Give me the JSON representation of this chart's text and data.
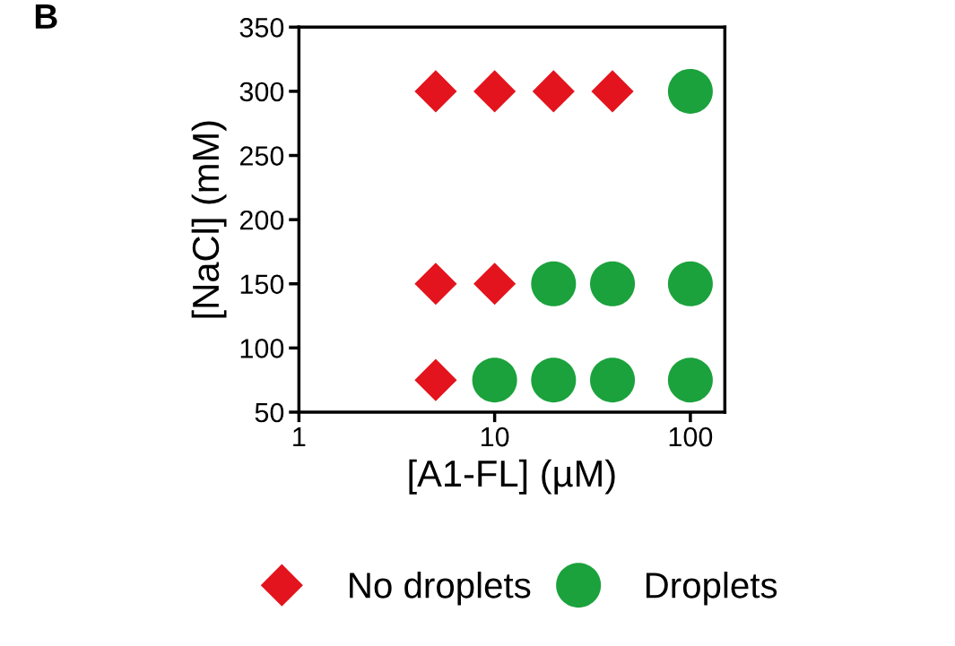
{
  "chart_data": {
    "type": "scatter",
    "xlabel": "[A1-FL] (µM)",
    "ylabel": "[NaCl] (mM)",
    "annotations": [
      "B"
    ],
    "log": "x",
    "xlim": [
      1,
      150
    ],
    "xticks": [
      1,
      10,
      100
    ],
    "ylim": [
      50,
      350
    ],
    "yticks": [
      50,
      100,
      150,
      200,
      250,
      300,
      350
    ],
    "grid": false,
    "legend": "bottom",
    "series": [
      {
        "name": "No droplets",
        "color": "#e3141d",
        "marker": "diamond",
        "x": [
          5,
          10,
          20,
          40,
          5,
          10,
          5
        ],
        "values": [
          300,
          300,
          300,
          300,
          150,
          150,
          75
        ]
      },
      {
        "name": "Droplets",
        "color": "#1ba23c",
        "marker": "circle",
        "x": [
          100,
          20,
          40,
          100,
          10,
          20,
          40,
          100
        ],
        "values": [
          300,
          150,
          150,
          150,
          75,
          75,
          75,
          75
        ]
      }
    ]
  }
}
